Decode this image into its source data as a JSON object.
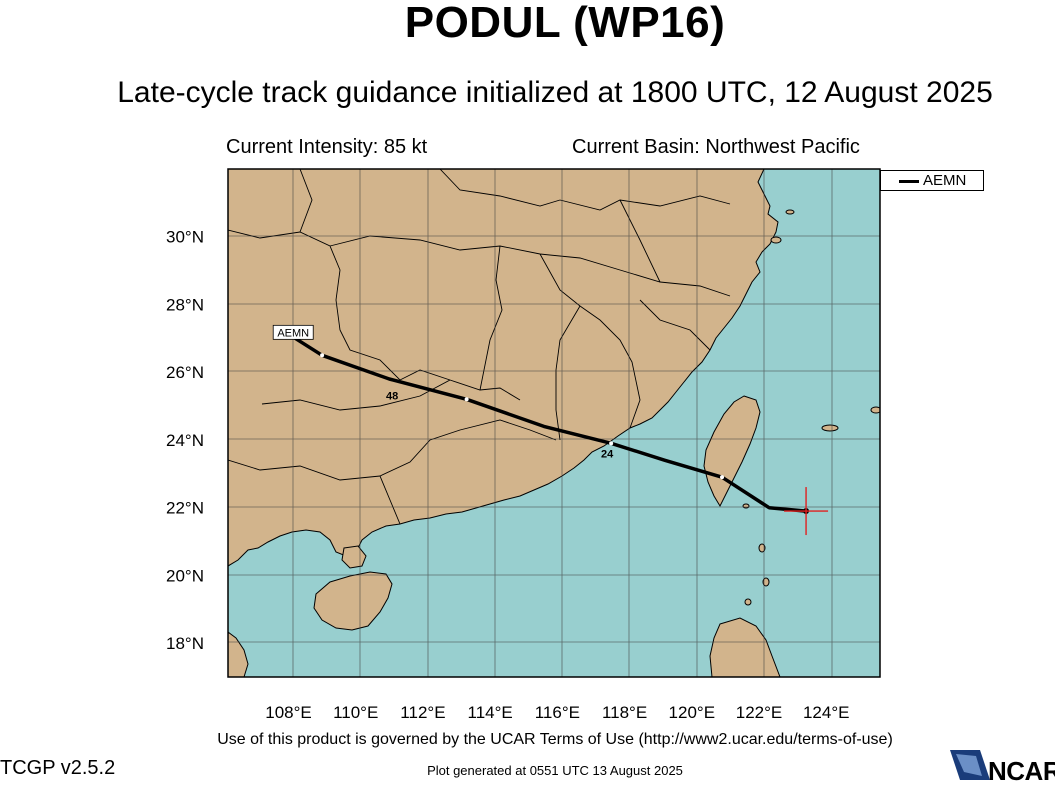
{
  "header": {
    "title": "PODUL (WP16)",
    "subtitle": "Late-cycle track guidance initialized at 1800 UTC, 12 August 2025"
  },
  "info": {
    "intensity": "Current Intensity: 85 kt",
    "basin": "Current Basin: Northwest Pacific"
  },
  "map": {
    "lon_range": [
      106.2,
      125.6
    ],
    "lat_range": [
      17.0,
      32.0
    ],
    "lon_ticks": [
      "108°E",
      "110°E",
      "112°E",
      "114°E",
      "116°E",
      "118°E",
      "120°E",
      "122°E",
      "124°E"
    ],
    "lat_ticks": [
      "18°N",
      "20°N",
      "22°N",
      "24°N",
      "26°N",
      "28°N",
      "30°N"
    ],
    "colors": {
      "land": "#d2b48c",
      "ocean": "#98cfcf",
      "track": "#000000",
      "current_marker": "#e02020"
    },
    "current_position": {
      "lat": 21.9,
      "lon": 123.4
    }
  },
  "legend": {
    "entries": [
      {
        "name": "AEMN"
      }
    ]
  },
  "tracks": [
    {
      "name": "AEMN",
      "label": "AEMN",
      "points": [
        {
          "lon": 123.4,
          "lat": 21.9
        },
        {
          "lon": 122.3,
          "lat": 22.0
        },
        {
          "lon": 120.9,
          "lat": 22.9
        },
        {
          "lon": 119.2,
          "lat": 23.4
        },
        {
          "lon": 117.6,
          "lat": 23.9
        },
        {
          "lon": 115.6,
          "lat": 24.4
        },
        {
          "lon": 113.3,
          "lat": 25.2
        },
        {
          "lon": 111.0,
          "lat": 25.8
        },
        {
          "lon": 109.0,
          "lat": 26.5
        },
        {
          "lon": 108.2,
          "lat": 27.0
        }
      ],
      "tau_labels": [
        {
          "text": "24",
          "lon": 117.3,
          "lat": 23.9
        },
        {
          "text": "48",
          "lon": 110.9,
          "lat": 25.6
        }
      ]
    }
  ],
  "footer": {
    "terms": "Use of this product is governed by the UCAR Terms of Use (http://www2.ucar.edu/terms-of-use)",
    "version": "TCGP v2.5.2",
    "generated": "Plot generated at 0551 UTC   13 August 2025",
    "logo": "NCAR"
  }
}
